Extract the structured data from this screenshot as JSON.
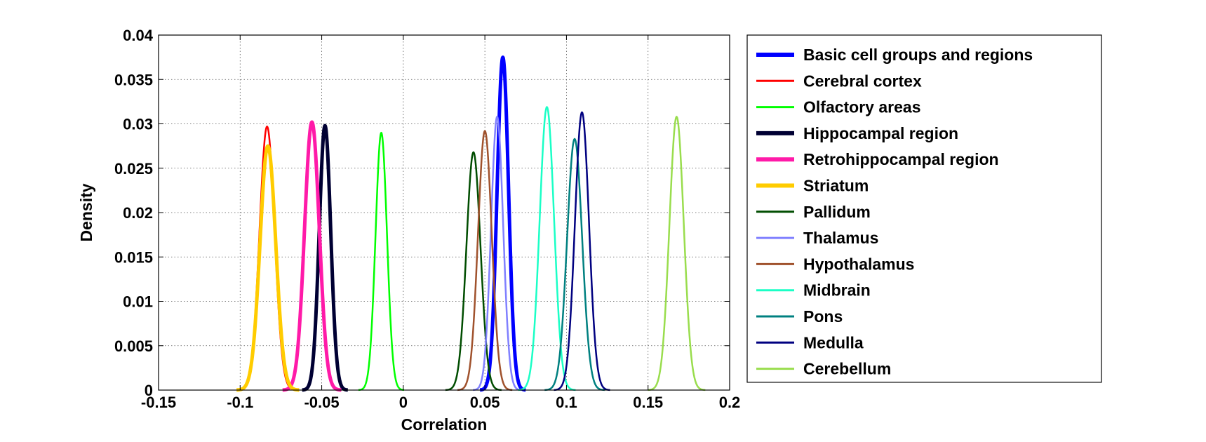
{
  "chart_data": {
    "type": "line",
    "title": "",
    "xlabel": "Correlation",
    "ylabel": "Density",
    "xlim": [
      -0.15,
      0.2
    ],
    "ylim": [
      0,
      0.04
    ],
    "xticks": [
      -0.15,
      -0.1,
      -0.05,
      0,
      0.05,
      0.1,
      0.15,
      0.2
    ],
    "xtick_labels": [
      "-0.15",
      "-0.1",
      "-0.05",
      "0",
      "0.05",
      "0.1",
      "0.15",
      "0.2"
    ],
    "yticks": [
      0,
      0.005,
      0.01,
      0.015,
      0.02,
      0.025,
      0.03,
      0.035,
      0.04
    ],
    "ytick_labels": [
      "0",
      "0.005",
      "0.01",
      "0.015",
      "0.02",
      "0.025",
      "0.03",
      "0.035",
      "0.04"
    ],
    "grid": true,
    "legend_position": "outside-right",
    "series": [
      {
        "name": "Basic cell groups and regions",
        "color": "#0000ff",
        "mean": 0.061,
        "peak": 0.0375,
        "sd": 0.0035,
        "thick": true
      },
      {
        "name": "Cerebral cortex",
        "color": "#ff0000",
        "mean": -0.0835,
        "peak": 0.0297,
        "sd": 0.0046,
        "thick": false
      },
      {
        "name": "Olfactory areas",
        "color": "#00ff00",
        "mean": -0.0135,
        "peak": 0.029,
        "sd": 0.0035,
        "thick": false
      },
      {
        "name": "Hippocampal region",
        "color": "#000033",
        "mean": -0.048,
        "peak": 0.0298,
        "sd": 0.0035,
        "thick": true
      },
      {
        "name": "Retrohippocampal region",
        "color": "#ff1aa8",
        "mean": -0.056,
        "peak": 0.0302,
        "sd": 0.0045,
        "thick": true
      },
      {
        "name": "Striatum",
        "color": "#ffcc00",
        "mean": -0.083,
        "peak": 0.0275,
        "sd": 0.0048,
        "thick": true
      },
      {
        "name": "Pallidum",
        "color": "#004d00",
        "mean": 0.043,
        "peak": 0.0268,
        "sd": 0.0043,
        "thick": false
      },
      {
        "name": "Thalamus",
        "color": "#8080ff",
        "mean": 0.0575,
        "peak": 0.0308,
        "sd": 0.0037,
        "thick": false
      },
      {
        "name": "Hypothalamus",
        "color": "#a0522d",
        "mean": 0.05,
        "peak": 0.0292,
        "sd": 0.0042,
        "thick": false
      },
      {
        "name": "Midbrain",
        "color": "#1affc6",
        "mean": 0.088,
        "peak": 0.0319,
        "sd": 0.0044,
        "thick": false
      },
      {
        "name": "Pons",
        "color": "#008080",
        "mean": 0.105,
        "peak": 0.0283,
        "sd": 0.0046,
        "thick": false
      },
      {
        "name": "Medulla",
        "color": "#000080",
        "mean": 0.1095,
        "peak": 0.0313,
        "sd": 0.0043,
        "thick": false
      },
      {
        "name": "Cerebellum",
        "color": "#99dd4d",
        "mean": 0.1675,
        "peak": 0.0308,
        "sd": 0.0044,
        "thick": false
      }
    ]
  }
}
